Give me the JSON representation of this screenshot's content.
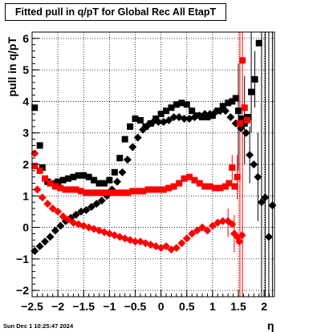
{
  "header": {
    "title": "Fitted pull in q/pT for Global Rec All EtapT"
  },
  "footer": {
    "timestamp": "Sun Dec  1 10:25:47 2024"
  },
  "chart_data": {
    "type": "scatter",
    "title": "Fitted pull in q/pT for Global Rec All EtapT",
    "xlabel": "η",
    "ylabel": "pull in q/pT",
    "xlim": [
      -2.5,
      2.2
    ],
    "ylim": [
      -2.2,
      6.2
    ],
    "grid": true,
    "x_ticks": [
      "−2.5",
      "−2",
      "−1.5",
      "−1",
      "−0.5",
      "0",
      "0.5",
      "1",
      "1.5",
      "2"
    ],
    "y_ticks": [
      "−2",
      "−1",
      "0",
      "1",
      "2",
      "3",
      "4",
      "5",
      "6"
    ],
    "series": [
      {
        "color": "#000000",
        "marker": "square",
        "points": [
          [
            -2.45,
            3.8
          ],
          [
            -2.35,
            2.6
          ],
          [
            -2.3,
            1.9
          ],
          [
            -2.2,
            1.45
          ],
          [
            -2.1,
            1.4
          ],
          [
            -2.0,
            1.45
          ],
          [
            -1.9,
            1.5
          ],
          [
            -1.8,
            1.55
          ],
          [
            -1.7,
            1.6
          ],
          [
            -1.6,
            1.65
          ],
          [
            -1.5,
            1.65
          ],
          [
            -1.4,
            1.6
          ],
          [
            -1.3,
            1.5
          ],
          [
            -1.2,
            1.4
          ],
          [
            -1.1,
            1.4
          ],
          [
            -1.0,
            1.5
          ],
          [
            -0.9,
            1.75
          ],
          [
            -0.8,
            2.2
          ],
          [
            -0.7,
            2.8
          ],
          [
            -0.6,
            3.2
          ],
          [
            -0.5,
            3.45
          ],
          [
            -0.4,
            3.4
          ],
          [
            -0.3,
            3.2
          ],
          [
            -0.2,
            3.3
          ],
          [
            -0.1,
            3.45
          ],
          [
            0.0,
            3.6
          ],
          [
            0.1,
            3.7
          ],
          [
            0.2,
            3.8
          ],
          [
            0.3,
            3.9
          ],
          [
            0.4,
            3.95
          ],
          [
            0.5,
            3.9
          ],
          [
            0.6,
            3.7
          ],
          [
            0.7,
            3.55
          ],
          [
            0.8,
            3.5
          ],
          [
            0.9,
            3.5
          ],
          [
            1.0,
            3.55
          ],
          [
            1.1,
            3.7
          ],
          [
            1.2,
            3.85
          ],
          [
            1.3,
            3.95
          ],
          [
            1.38,
            4.0
          ],
          [
            1.45,
            4.1
          ],
          [
            1.5,
            3.7
          ],
          [
            1.56,
            3.45
          ],
          [
            1.62,
            3.3
          ],
          [
            1.68,
            3.5
          ],
          [
            1.75,
            4.3
          ],
          [
            1.82,
            4.7
          ],
          [
            1.9,
            5.85
          ]
        ]
      },
      {
        "color": "#000000",
        "marker": "diamond",
        "points": [
          [
            -2.45,
            -0.75
          ],
          [
            -2.35,
            -0.6
          ],
          [
            -2.25,
            -0.45
          ],
          [
            -2.15,
            -0.3
          ],
          [
            -2.05,
            -0.1
          ],
          [
            -1.95,
            0.05
          ],
          [
            -1.85,
            0.2
          ],
          [
            -1.75,
            0.3
          ],
          [
            -1.65,
            0.4
          ],
          [
            -1.55,
            0.5
          ],
          [
            -1.45,
            0.55
          ],
          [
            -1.35,
            0.65
          ],
          [
            -1.25,
            0.75
          ],
          [
            -1.15,
            0.85
          ],
          [
            -1.05,
            1.0
          ],
          [
            -0.95,
            1.2
          ],
          [
            -0.85,
            1.45
          ],
          [
            -0.75,
            1.75
          ],
          [
            -0.65,
            2.15
          ],
          [
            -0.55,
            2.55
          ],
          [
            -0.45,
            2.85
          ],
          [
            -0.35,
            3.1
          ],
          [
            -0.25,
            3.25
          ],
          [
            -0.15,
            3.35
          ],
          [
            -0.05,
            3.35
          ],
          [
            0.05,
            3.35
          ],
          [
            0.15,
            3.4
          ],
          [
            0.25,
            3.5
          ],
          [
            0.35,
            3.5
          ],
          [
            0.45,
            3.45
          ],
          [
            0.55,
            3.45
          ],
          [
            0.65,
            3.5
          ],
          [
            0.75,
            3.55
          ],
          [
            0.85,
            3.6
          ],
          [
            0.95,
            3.6
          ],
          [
            1.05,
            3.65
          ],
          [
            1.15,
            3.7
          ],
          [
            1.25,
            3.7
          ],
          [
            1.35,
            3.5
          ],
          [
            1.45,
            3.3
          ],
          [
            1.55,
            3.15
          ],
          [
            1.65,
            3.0
          ],
          [
            1.72,
            2.3
          ],
          [
            1.8,
            2.0
          ],
          [
            1.88,
            1.6
          ],
          [
            1.95,
            0.8
          ],
          [
            2.02,
            0.95
          ],
          [
            2.09,
            -0.3
          ],
          [
            2.16,
            0.7
          ]
        ]
      },
      {
        "color": "#ff0000",
        "marker": "square",
        "points": [
          [
            -2.45,
            1.95
          ],
          [
            -2.35,
            1.8
          ],
          [
            -2.25,
            1.55
          ],
          [
            -2.15,
            1.4
          ],
          [
            -2.05,
            1.3
          ],
          [
            -1.95,
            1.25
          ],
          [
            -1.85,
            1.2
          ],
          [
            -1.75,
            1.2
          ],
          [
            -1.65,
            1.2
          ],
          [
            -1.55,
            1.15
          ],
          [
            -1.45,
            1.1
          ],
          [
            -1.35,
            1.1
          ],
          [
            -1.25,
            1.1
          ],
          [
            -1.15,
            1.1
          ],
          [
            -1.05,
            1.1
          ],
          [
            -0.95,
            1.1
          ],
          [
            -0.85,
            1.1
          ],
          [
            -0.75,
            1.1
          ],
          [
            -0.65,
            1.1
          ],
          [
            -0.55,
            1.15
          ],
          [
            -0.45,
            1.15
          ],
          [
            -0.35,
            1.15
          ],
          [
            -0.25,
            1.2
          ],
          [
            -0.15,
            1.2
          ],
          [
            -0.05,
            1.2
          ],
          [
            0.05,
            1.2
          ],
          [
            0.15,
            1.25
          ],
          [
            0.25,
            1.3
          ],
          [
            0.35,
            1.4
          ],
          [
            0.45,
            1.55
          ],
          [
            0.55,
            1.6
          ],
          [
            0.65,
            1.5
          ],
          [
            0.75,
            1.4
          ],
          [
            0.85,
            1.3
          ],
          [
            0.95,
            1.3
          ],
          [
            1.05,
            1.25
          ],
          [
            1.15,
            1.25
          ],
          [
            1.25,
            1.3
          ],
          [
            1.32,
            1.4
          ],
          [
            1.38,
            1.9
          ],
          [
            1.43,
            1.3
          ],
          [
            1.48,
            1.6
          ],
          [
            1.53,
            3.3
          ],
          [
            1.58,
            5.3
          ],
          [
            1.62,
            3.8
          ],
          [
            1.67,
            3.4
          ]
        ]
      },
      {
        "color": "#ff0000",
        "marker": "diamond",
        "points": [
          [
            -2.45,
            2.35
          ],
          [
            -2.4,
            1.2
          ],
          [
            -2.3,
            0.95
          ],
          [
            -2.2,
            0.75
          ],
          [
            -2.1,
            0.6
          ],
          [
            -2.0,
            0.5
          ],
          [
            -1.9,
            0.35
          ],
          [
            -1.8,
            0.25
          ],
          [
            -1.7,
            0.15
          ],
          [
            -1.6,
            0.1
          ],
          [
            -1.5,
            0.05
          ],
          [
            -1.4,
            0.0
          ],
          [
            -1.3,
            -0.05
          ],
          [
            -1.2,
            -0.1
          ],
          [
            -1.1,
            -0.15
          ],
          [
            -1.0,
            -0.2
          ],
          [
            -0.9,
            -0.25
          ],
          [
            -0.8,
            -0.3
          ],
          [
            -0.7,
            -0.35
          ],
          [
            -0.6,
            -0.4
          ],
          [
            -0.5,
            -0.45
          ],
          [
            -0.4,
            -0.45
          ],
          [
            -0.3,
            -0.5
          ],
          [
            -0.2,
            -0.55
          ],
          [
            -0.1,
            -0.6
          ],
          [
            0.0,
            -0.65
          ],
          [
            0.1,
            -0.6
          ],
          [
            0.2,
            -0.7
          ],
          [
            0.3,
            -0.65
          ],
          [
            0.4,
            -0.5
          ],
          [
            0.5,
            -0.35
          ],
          [
            0.6,
            -0.2
          ],
          [
            0.7,
            -0.1
          ],
          [
            0.8,
            0.0
          ],
          [
            0.9,
            -0.1
          ],
          [
            1.0,
            0.05
          ],
          [
            1.1,
            0.15
          ],
          [
            1.2,
            0.2
          ],
          [
            1.3,
            0.2
          ],
          [
            1.38,
            0.1
          ],
          [
            1.42,
            -0.2
          ],
          [
            1.48,
            -0.3
          ],
          [
            1.52,
            -0.45
          ],
          [
            1.57,
            -0.25
          ]
        ]
      }
    ],
    "error_bars": [
      {
        "color": "#ff0000",
        "x": 1.53,
        "low": -2.2,
        "high": 6.2
      },
      {
        "color": "#ff0000",
        "x": 1.58,
        "low": -2.2,
        "high": 6.2
      },
      {
        "color": "#ff0000",
        "x": 1.48,
        "low": 0.9,
        "high": 2.3
      },
      {
        "color": "#ff0000",
        "x": 1.42,
        "low": -0.8,
        "high": 0.4
      },
      {
        "color": "#ff0000",
        "x": 1.38,
        "low": 1.5,
        "high": 2.3
      },
      {
        "color": "#ff0000",
        "x": 1.3,
        "low": -0.3,
        "high": 0.6
      },
      {
        "color": "#000000",
        "x": 1.5,
        "low": 1.8,
        "high": 5.2
      },
      {
        "color": "#000000",
        "x": 1.62,
        "low": 2.0,
        "high": 4.8
      },
      {
        "color": "#000000",
        "x": 1.75,
        "low": 3.0,
        "high": 6.2
      },
      {
        "color": "#000000",
        "x": 1.82,
        "low": 3.8,
        "high": 5.6
      },
      {
        "color": "#000000",
        "x": 1.88,
        "low": 0.2,
        "high": 3.0
      },
      {
        "color": "#000000",
        "x": 1.95,
        "low": -2.2,
        "high": 6.2
      },
      {
        "color": "#000000",
        "x": 2.02,
        "low": -2.2,
        "high": 6.2
      },
      {
        "color": "#000000",
        "x": 2.09,
        "low": -2.2,
        "high": 6.2
      },
      {
        "color": "#000000",
        "x": 2.16,
        "low": -2.2,
        "high": 6.2
      },
      {
        "color": "#000000",
        "x": 1.72,
        "low": 1.4,
        "high": 3.2
      }
    ]
  }
}
